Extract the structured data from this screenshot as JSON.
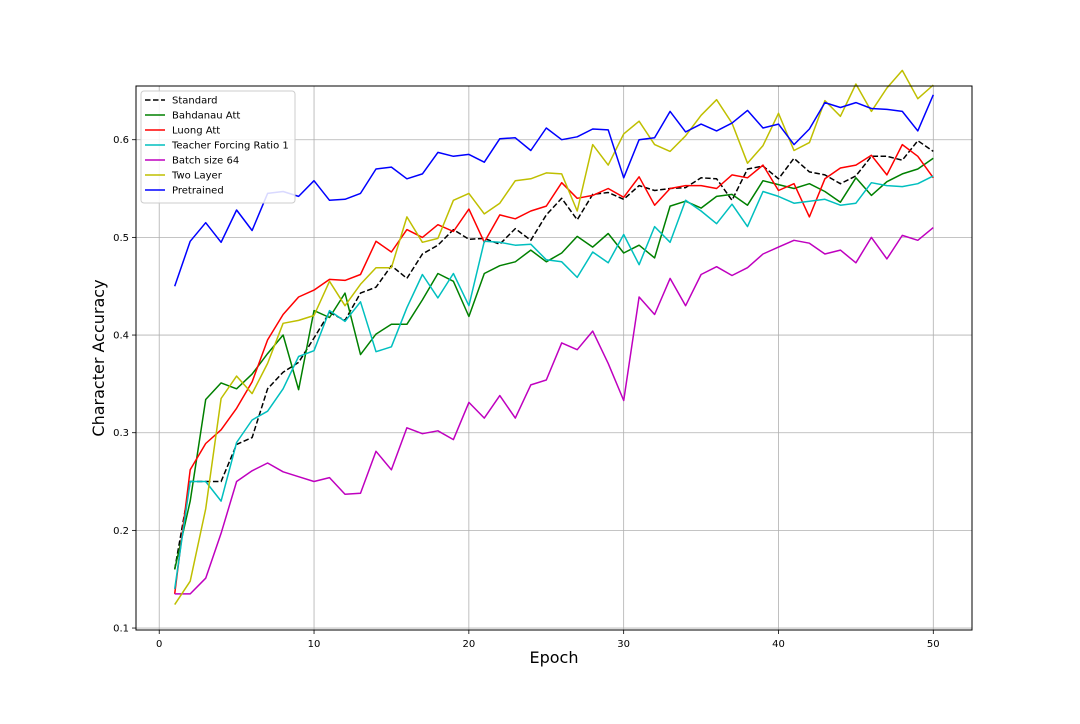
{
  "chart_data": {
    "type": "line",
    "title": "",
    "xlabel": "Epoch",
    "ylabel": "Character Accuracy",
    "xlim": [
      -1.5,
      52.5
    ],
    "ylim": [
      0.098,
      0.655
    ],
    "xticks": [
      0,
      10,
      20,
      30,
      40,
      50
    ],
    "xtick_labels": [
      "0",
      "10",
      "20",
      "30",
      "40",
      "50"
    ],
    "yticks": [
      0.1,
      0.2,
      0.3,
      0.4,
      0.5,
      0.6
    ],
    "ytick_labels": [
      "0.1",
      "0.2",
      "0.3",
      "0.4",
      "0.5",
      "0.6"
    ],
    "grid": true,
    "legend_position": "top-left",
    "x": [
      1,
      2,
      3,
      4,
      5,
      6,
      7,
      8,
      9,
      10,
      11,
      12,
      13,
      14,
      15,
      16,
      17,
      18,
      19,
      20,
      21,
      22,
      23,
      24,
      25,
      26,
      27,
      28,
      29,
      30,
      31,
      32,
      33,
      34,
      35,
      36,
      37,
      38,
      39,
      40,
      41,
      42,
      43,
      44,
      45,
      46,
      47,
      48,
      49,
      50
    ],
    "series": [
      {
        "name": "Standard",
        "color": "#000000",
        "dash": "dashed",
        "values": [
          0.16,
          0.25,
          0.25,
          0.25,
          0.288,
          0.295,
          0.345,
          0.362,
          0.372,
          0.397,
          0.423,
          0.415,
          0.443,
          0.449,
          0.471,
          0.458,
          0.483,
          0.492,
          0.508,
          0.498,
          0.499,
          0.493,
          0.509,
          0.497,
          0.523,
          0.54,
          0.518,
          0.544,
          0.546,
          0.539,
          0.553,
          0.548,
          0.55,
          0.551,
          0.561,
          0.56,
          0.538,
          0.57,
          0.573,
          0.56,
          0.581,
          0.567,
          0.564,
          0.555,
          0.563,
          0.583,
          0.583,
          0.579,
          0.599,
          0.588
        ]
      },
      {
        "name": "Bahdanau Att",
        "color": "#008000",
        "dash": "solid",
        "values": [
          0.16,
          0.23,
          0.334,
          0.351,
          0.345,
          0.36,
          0.381,
          0.4,
          0.344,
          0.425,
          0.418,
          0.443,
          0.38,
          0.401,
          0.411,
          0.411,
          0.436,
          0.463,
          0.455,
          0.419,
          0.463,
          0.471,
          0.475,
          0.487,
          0.475,
          0.484,
          0.501,
          0.49,
          0.504,
          0.484,
          0.492,
          0.479,
          0.532,
          0.537,
          0.53,
          0.542,
          0.544,
          0.533,
          0.558,
          0.554,
          0.55,
          0.555,
          0.547,
          0.536,
          0.561,
          0.543,
          0.557,
          0.565,
          0.57,
          0.581
        ]
      },
      {
        "name": "Luong Att",
        "color": "#ff0000",
        "dash": "solid",
        "values": [
          0.135,
          0.262,
          0.289,
          0.303,
          0.325,
          0.352,
          0.395,
          0.421,
          0.439,
          0.446,
          0.457,
          0.456,
          0.462,
          0.496,
          0.485,
          0.508,
          0.5,
          0.513,
          0.506,
          0.529,
          0.495,
          0.523,
          0.519,
          0.527,
          0.532,
          0.556,
          0.54,
          0.543,
          0.55,
          0.541,
          0.562,
          0.533,
          0.55,
          0.553,
          0.553,
          0.55,
          0.564,
          0.561,
          0.574,
          0.548,
          0.555,
          0.521,
          0.56,
          0.571,
          0.574,
          0.584,
          0.564,
          0.595,
          0.583,
          0.561
        ]
      },
      {
        "name": "Teacher Forcing Ratio 1",
        "color": "#00bfbf",
        "dash": "solid",
        "values": [
          0.14,
          0.25,
          0.25,
          0.23,
          0.29,
          0.313,
          0.322,
          0.345,
          0.378,
          0.384,
          0.425,
          0.414,
          0.434,
          0.383,
          0.388,
          0.428,
          0.462,
          0.438,
          0.463,
          0.43,
          0.496,
          0.495,
          0.492,
          0.493,
          0.477,
          0.475,
          0.459,
          0.485,
          0.474,
          0.503,
          0.472,
          0.511,
          0.495,
          0.538,
          0.527,
          0.514,
          0.534,
          0.511,
          0.547,
          0.542,
          0.535,
          0.537,
          0.539,
          0.533,
          0.535,
          0.556,
          0.553,
          0.552,
          0.555,
          0.563
        ]
      },
      {
        "name": "Batch size 64",
        "color": "#bf00bf",
        "dash": "solid",
        "values": [
          0.135,
          0.135,
          0.151,
          0.197,
          0.25,
          0.261,
          0.269,
          0.26,
          0.255,
          0.25,
          0.254,
          0.237,
          0.238,
          0.281,
          0.262,
          0.305,
          0.299,
          0.302,
          0.293,
          0.331,
          0.315,
          0.338,
          0.315,
          0.349,
          0.354,
          0.392,
          0.385,
          0.404,
          0.371,
          0.333,
          0.439,
          0.421,
          0.458,
          0.43,
          0.462,
          0.47,
          0.461,
          0.469,
          0.483,
          0.49,
          0.497,
          0.494,
          0.483,
          0.487,
          0.474,
          0.5,
          0.478,
          0.502,
          0.497,
          0.51
        ]
      },
      {
        "name": "Two Layer",
        "color": "#bfbf00",
        "dash": "solid",
        "values": [
          0.124,
          0.148,
          0.222,
          0.335,
          0.358,
          0.34,
          0.371,
          0.412,
          0.415,
          0.42,
          0.455,
          0.43,
          0.452,
          0.469,
          0.469,
          0.521,
          0.495,
          0.499,
          0.538,
          0.545,
          0.524,
          0.535,
          0.558,
          0.56,
          0.566,
          0.565,
          0.527,
          0.595,
          0.574,
          0.606,
          0.619,
          0.595,
          0.588,
          0.604,
          0.625,
          0.641,
          0.617,
          0.576,
          0.594,
          0.627,
          0.589,
          0.597,
          0.64,
          0.624,
          0.657,
          0.629,
          0.653,
          0.671,
          0.642,
          0.656
        ]
      },
      {
        "name": "Pretrained",
        "color": "#0000ff",
        "dash": "solid",
        "values": [
          0.45,
          0.496,
          0.515,
          0.495,
          0.528,
          0.507,
          0.545,
          0.547,
          0.542,
          0.558,
          0.538,
          0.539,
          0.545,
          0.57,
          0.572,
          0.56,
          0.565,
          0.587,
          0.583,
          0.585,
          0.577,
          0.601,
          0.602,
          0.589,
          0.612,
          0.6,
          0.603,
          0.611,
          0.61,
          0.561,
          0.6,
          0.602,
          0.629,
          0.608,
          0.616,
          0.609,
          0.617,
          0.63,
          0.612,
          0.616,
          0.595,
          0.611,
          0.638,
          0.633,
          0.638,
          0.632,
          0.631,
          0.629,
          0.609,
          0.646
        ]
      }
    ]
  }
}
